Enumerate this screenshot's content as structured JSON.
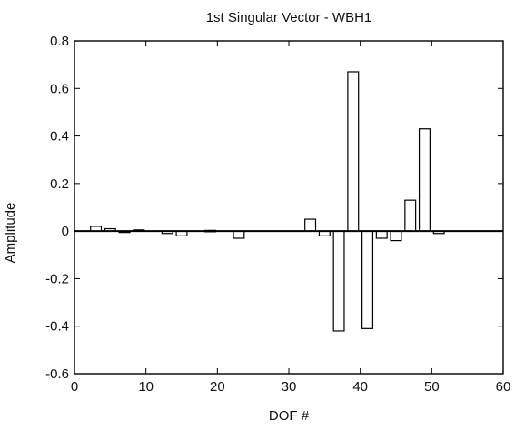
{
  "chart_data": {
    "type": "bar",
    "title": "1st Singular Vector - WBH1",
    "xlabel": "DOF #",
    "ylabel": "Amplitude",
    "xlim": [
      0,
      60
    ],
    "ylim": [
      -0.6,
      0.8
    ],
    "x_ticks": [
      0,
      10,
      20,
      30,
      40,
      50,
      60
    ],
    "x_tick_labels": [
      "0",
      "10",
      "20",
      "30",
      "40",
      "50",
      "60"
    ],
    "y_ticks": [
      -0.6,
      -0.4,
      -0.2,
      0,
      0.2,
      0.4,
      0.6,
      0.8
    ],
    "y_tick_labels": [
      "-0.6",
      "-0.4",
      "-0.2",
      "0",
      "0.2",
      "0.4",
      "0.6",
      "0.8"
    ],
    "grid": false,
    "x": [
      3,
      5,
      7,
      9,
      13,
      15,
      19,
      23,
      33,
      35,
      37,
      39,
      41,
      43,
      45,
      47,
      49,
      51
    ],
    "values": [
      0.02,
      0.01,
      -0.005,
      0.005,
      -0.01,
      -0.02,
      0.003,
      -0.03,
      0.05,
      -0.02,
      -0.42,
      0.67,
      -0.41,
      -0.03,
      -0.04,
      0.13,
      0.43,
      -0.01
    ]
  }
}
